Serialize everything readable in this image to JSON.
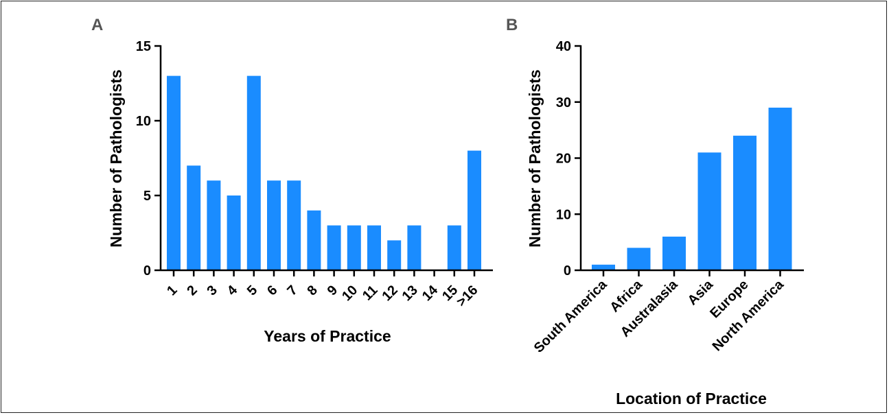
{
  "chart_data": [
    {
      "type": "bar",
      "panel_label": "A",
      "categories": [
        "1",
        "2",
        "3",
        "4",
        "5",
        "6",
        "7",
        "8",
        "9",
        "10",
        "11",
        "12",
        "13",
        "14",
        "15",
        ">16"
      ],
      "values": [
        13,
        7,
        6,
        5,
        13,
        6,
        6,
        4,
        3,
        3,
        3,
        2,
        3,
        0,
        3,
        8
      ],
      "xlabel": "Years of Practice",
      "ylabel": "Number of Pathologists",
      "ylim": [
        0,
        15
      ],
      "yticks": [
        0,
        5,
        10,
        15
      ],
      "bar_color": "#1a8cff",
      "grid": false
    },
    {
      "type": "bar",
      "panel_label": "B",
      "categories": [
        "South America",
        "Africa",
        "Australasia",
        "Asia",
        "Europe",
        "North America"
      ],
      "values": [
        1,
        4,
        6,
        21,
        24,
        29
      ],
      "xlabel": "Location of Practice",
      "ylabel": "Number of Pathologists",
      "ylim": [
        0,
        40
      ],
      "yticks": [
        0,
        10,
        20,
        30,
        40
      ],
      "bar_color": "#1a8cff",
      "grid": false
    }
  ]
}
